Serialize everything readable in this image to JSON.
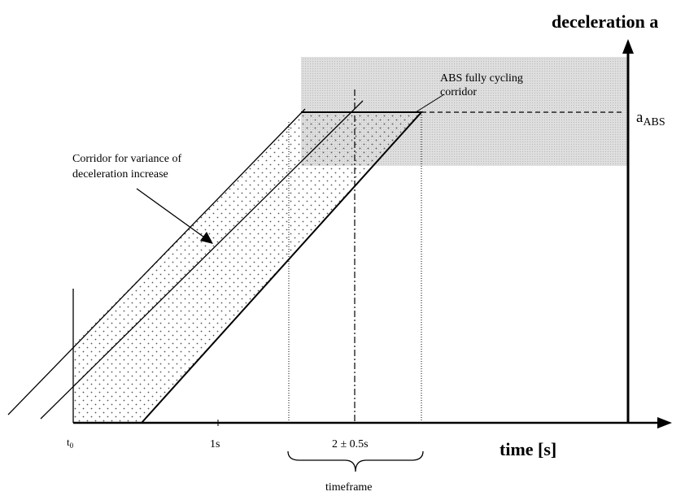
{
  "axes": {
    "y_title": "deceleration a",
    "x_title": "time [s]"
  },
  "labels": {
    "a_abs_main": "a",
    "a_abs_sub": "ABS",
    "t0_main": "t",
    "t0_sub": "0",
    "one_s": "1s",
    "two_s": "2 ± 0.5s",
    "timeframe": "timeframe",
    "abs_corridor_line1": "ABS fully cycling",
    "abs_corridor_line2": "corridor",
    "variance_line1": "Corridor for variance of",
    "variance_line2": "deceleration increase"
  },
  "colors": {
    "ink": "#000000",
    "abs_band": "#d4d4d4",
    "dots": "#555555"
  }
}
